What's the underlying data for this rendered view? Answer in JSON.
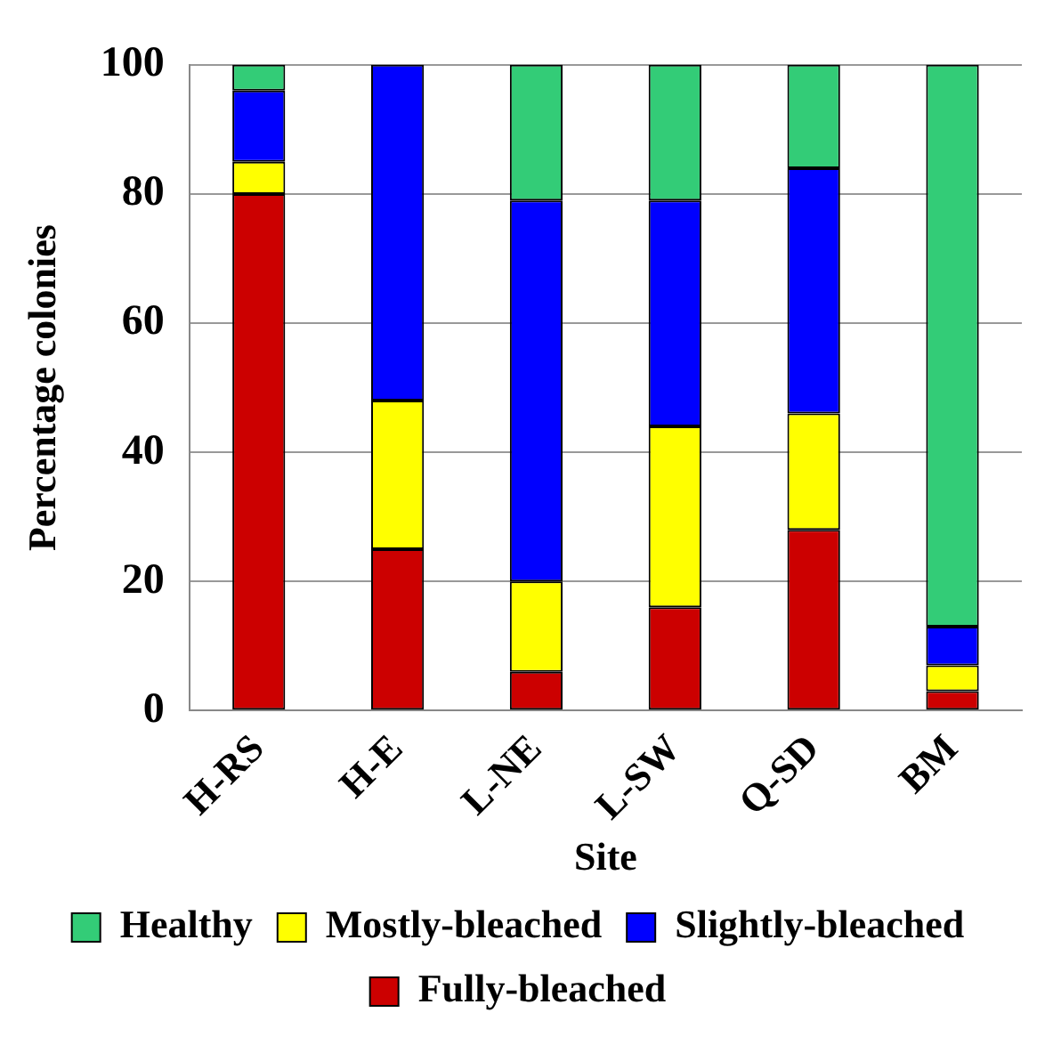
{
  "chart_data": {
    "type": "bar",
    "stacked": true,
    "xlabel": "Site",
    "ylabel": "Percentage colonies",
    "categories": [
      "H-RS",
      "H-E",
      "L-NE",
      "L-SW",
      "Q-SD",
      "BM"
    ],
    "series": [
      {
        "name": "Fully-bleached",
        "color": "#cc0000",
        "values": [
          80,
          25,
          6,
          16,
          28,
          3
        ]
      },
      {
        "name": "Mostly-bleached",
        "color": "#ffff00",
        "values": [
          5,
          23,
          14,
          28,
          18,
          4
        ]
      },
      {
        "name": "Slightly-bleached",
        "color": "#0000ff",
        "values": [
          11,
          52,
          59,
          35,
          38,
          6
        ]
      },
      {
        "name": "Healthy",
        "color": "#33cc77",
        "values": [
          4,
          0,
          21,
          21,
          16,
          87
        ]
      }
    ],
    "ylim": [
      0,
      100
    ],
    "yticks": [
      0,
      20,
      40,
      60,
      80,
      100
    ],
    "grid": "y",
    "legend": "bottom"
  }
}
